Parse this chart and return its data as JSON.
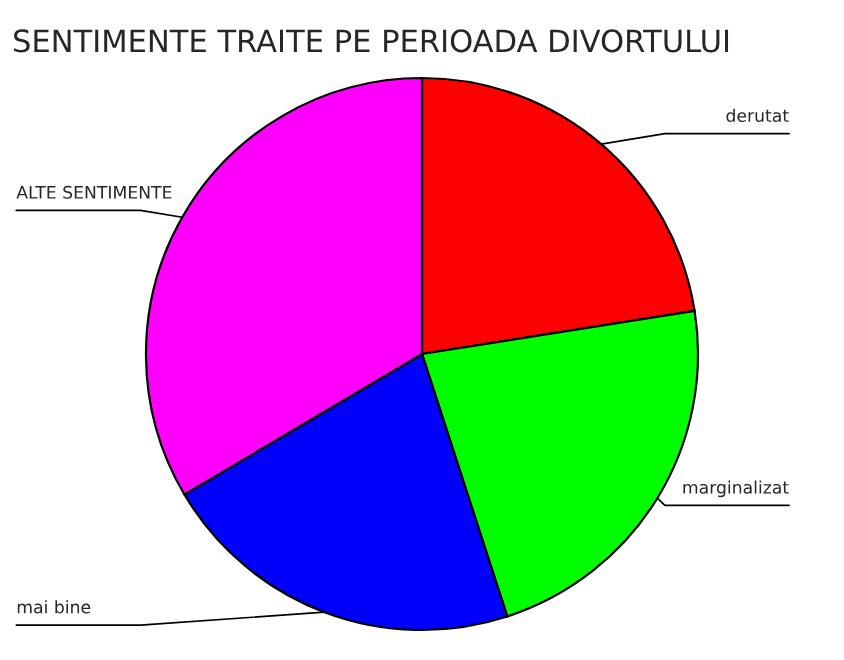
{
  "chart_data": {
    "type": "pie",
    "title": "SENTIMENTE TRAITE PE PERIOADA DIVORTULUI",
    "categories": [
      "derutat",
      "marginalizat",
      "mai bine",
      "ALTE SENTIMENTE"
    ],
    "values": [
      22.5,
      22.5,
      21.5,
      33.5
    ],
    "colors": [
      "#ff0000",
      "#00ff00",
      "#0000ff",
      "#ff00ff"
    ]
  }
}
